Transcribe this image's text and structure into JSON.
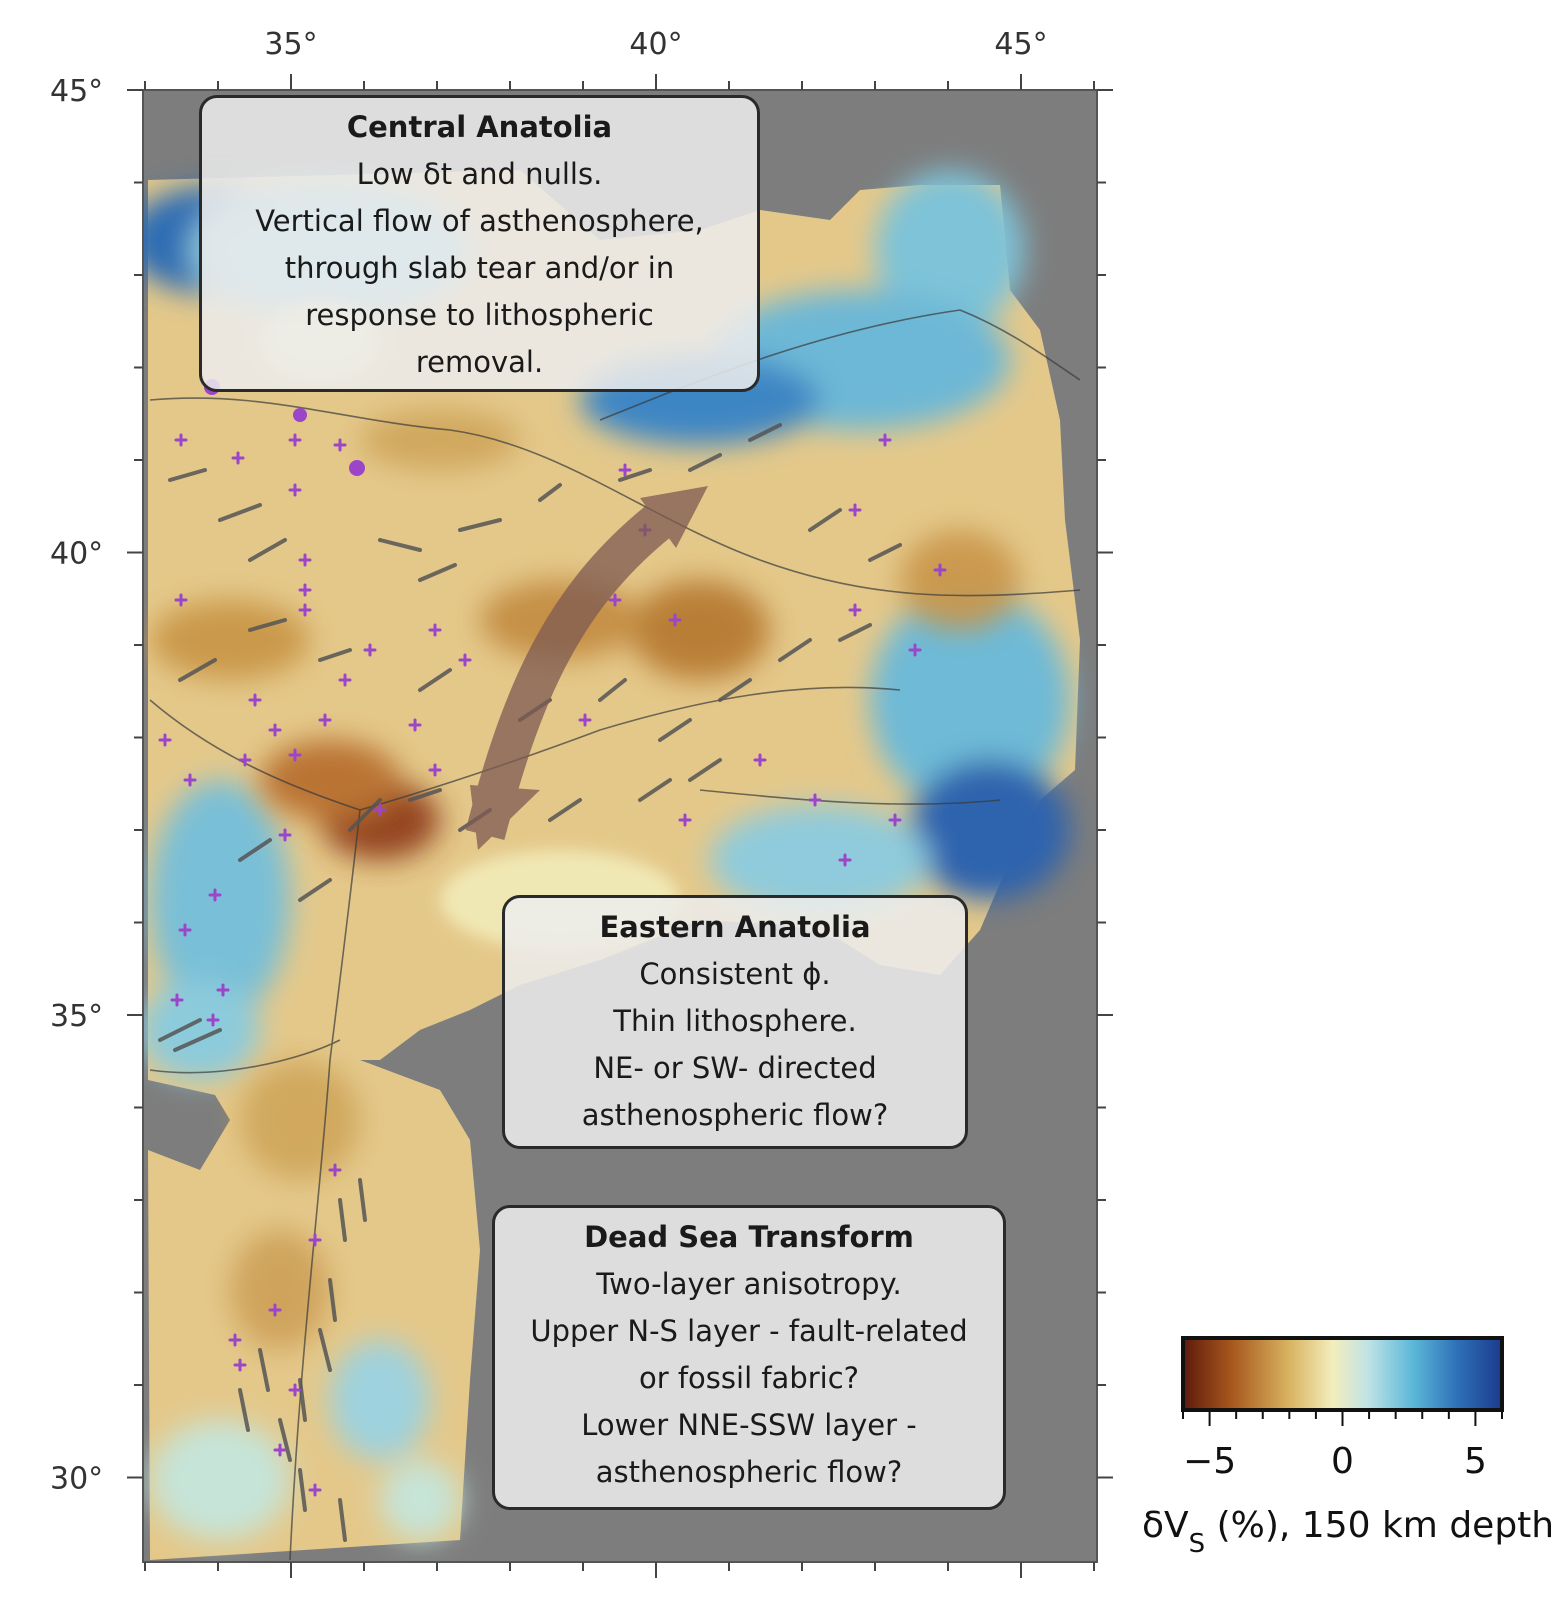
{
  "map": {
    "x_axis": {
      "ticks": [
        {
          "value": 35,
          "label": "35°"
        },
        {
          "value": 40,
          "label": "40°"
        },
        {
          "value": 45,
          "label": "45°"
        }
      ]
    },
    "y_axis": {
      "ticks": [
        {
          "value": 45,
          "label": "45°"
        },
        {
          "value": 40,
          "label": "40°"
        },
        {
          "value": 35,
          "label": "35°"
        },
        {
          "value": 30,
          "label": "30°"
        }
      ]
    }
  },
  "annotations": [
    {
      "id": "central",
      "title": "Central Anatolia",
      "lines": [
        "Low δt and nulls.",
        "Vertical flow of asthenosphere,",
        "through slab tear and/or in",
        "response to lithospheric",
        "removal."
      ]
    },
    {
      "id": "eastern",
      "title": "Eastern Anatolia",
      "lines": [
        "Consistent ϕ.",
        "Thin lithosphere.",
        "NE- or SW- directed",
        "asthenospheric flow?"
      ]
    },
    {
      "id": "deadsea",
      "title": "Dead Sea Transform",
      "lines": [
        "Two-layer anisotropy.",
        "Upper N-S layer - fault-related",
        "or fossil fabric?",
        "Lower NNE-SSW layer -",
        "asthenospheric flow?"
      ]
    }
  ],
  "colorbar": {
    "tick_labels": [
      "−5",
      "0",
      "5"
    ],
    "tick_values": [
      -5,
      0,
      5
    ],
    "range": [
      -6,
      6
    ],
    "title_main": "δV",
    "title_sub": "S",
    "title_rest": " (%), 150 km depth",
    "colors": [
      "#5e1a0c",
      "#a6561c",
      "#d8b260",
      "#f3eebc",
      "#bfe3e6",
      "#5cb8d8",
      "#2e70b8",
      "#1b3b8c"
    ]
  }
}
